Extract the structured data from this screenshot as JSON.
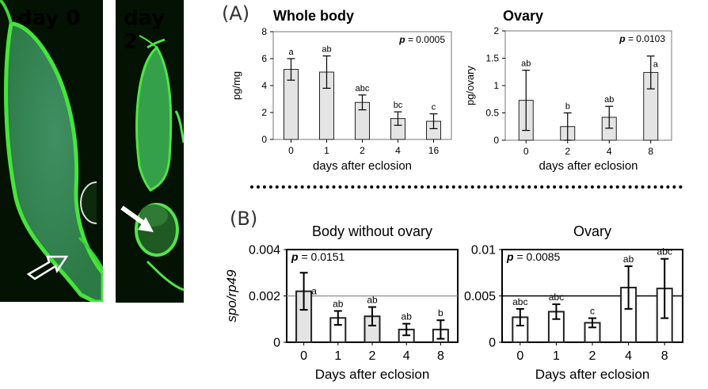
{
  "images": [
    {
      "label": "day 0"
    },
    {
      "label": "day 2"
    }
  ],
  "panels": {
    "a": "(A)",
    "b": "(B)"
  },
  "chart_data": [
    {
      "type": "bar",
      "panel": "A",
      "title": "Whole body",
      "xlabel": "days after eclosion",
      "ylabel": "pg/mg",
      "categories": [
        "0",
        "1",
        "2",
        "4",
        "16"
      ],
      "values": [
        5.2,
        5.0,
        2.75,
        1.55,
        1.35
      ],
      "errors": [
        0.8,
        1.2,
        0.55,
        0.5,
        0.55
      ],
      "letters": [
        "a",
        "ab",
        "abc",
        "bc",
        "c"
      ],
      "ylim": [
        0,
        8
      ],
      "yticks": [
        "0",
        "2",
        "4",
        "6",
        "8"
      ],
      "pvalue": "p = 0.0005",
      "bar_color": "#e4e4e4"
    },
    {
      "type": "bar",
      "panel": "A",
      "title": "Ovary",
      "xlabel": "days after eclosion",
      "ylabel": "pg/ovary",
      "categories": [
        "0",
        "2",
        "4",
        "8"
      ],
      "values": [
        0.73,
        0.25,
        0.42,
        1.24
      ],
      "errors": [
        0.55,
        0.25,
        0.2,
        0.3
      ],
      "letters": [
        "ab",
        "b",
        "ab",
        "a"
      ],
      "ylim": [
        0,
        2
      ],
      "yticks": [
        "0",
        "0.5",
        "1",
        "1.5",
        "2"
      ],
      "pvalue": "p = 0.0103",
      "bar_color": "#e4e4e4"
    },
    {
      "type": "bar",
      "panel": "B",
      "title": "Body without ovary",
      "xlabel": "Days after eclosion",
      "ylabel": "spo/rp49",
      "categories": [
        "0",
        "1",
        "2",
        "4",
        "8"
      ],
      "values": [
        0.0022,
        0.00105,
        0.00112,
        0.00055,
        0.00055
      ],
      "errors": [
        0.0008,
        0.0003,
        0.0004,
        0.00025,
        0.0004
      ],
      "letters": [
        "a",
        "ab",
        "ab",
        "ab",
        "b"
      ],
      "ylim": [
        0,
        0.004
      ],
      "yticks": [
        "0",
        "0.002",
        "0.004"
      ],
      "reference_line": 0.002,
      "pvalue": "p = 0.0151",
      "bar_colors": [
        "#e4e4e4",
        "#ffffff",
        "#e4e4e4",
        "#ffffff",
        "#ffffff"
      ]
    },
    {
      "type": "bar",
      "panel": "B",
      "title": "Ovary",
      "xlabel": "Days after eclosion",
      "ylabel": "",
      "categories": [
        "0",
        "1",
        "2",
        "4",
        "8"
      ],
      "values": [
        0.0027,
        0.0033,
        0.0021,
        0.0059,
        0.0058
      ],
      "errors": [
        0.0009,
        0.0008,
        0.0005,
        0.0023,
        0.0032
      ],
      "letters": [
        "abc",
        "abc",
        "c",
        "ab",
        "abc"
      ],
      "ylim": [
        0,
        0.01
      ],
      "yticks": [
        "0",
        "0.005",
        "0.01"
      ],
      "reference_line": 0.005,
      "pvalue": "p = 0.0085",
      "bar_colors": [
        "#ffffff",
        "#ffffff",
        "#ffffff",
        "#ffffff",
        "#ffffff"
      ]
    }
  ]
}
